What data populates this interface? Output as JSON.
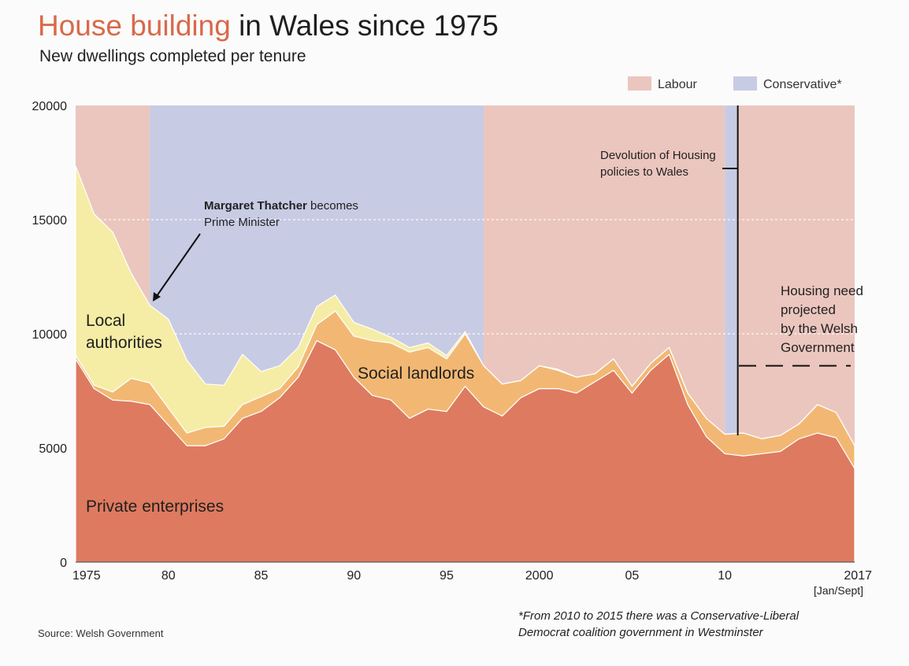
{
  "title": {
    "highlight": "House building",
    "rest": " in Wales since 1975"
  },
  "subtitle": "New dwellings completed per tenure",
  "source": "Source: Welsh Government",
  "footnote": "*From 2010 to 2015 there was a Conservative-Liberal Democrat coalition government in Westminster",
  "colors": {
    "labour_band": "#ebc6be",
    "conservative_band": "#c8cbe4",
    "private": "#de7a5f",
    "social": "#f2b873",
    "local": "#f5eda6",
    "title_accent": "#d9694a"
  },
  "legend": [
    {
      "label": "Labour",
      "color": "#ebc6be"
    },
    {
      "label": "Conservative*",
      "color": "#c8cbe4"
    }
  ],
  "annotations": {
    "thatcher_bold": "Margaret Thatcher",
    "thatcher_rest": " becomes",
    "thatcher_line2": "Prime Minister",
    "devolution_line1": "Devolution of Housing",
    "devolution_line2": "policies to Wales",
    "housing_need": [
      "Housing need",
      "projected",
      "by the Welsh",
      "Government"
    ],
    "jan_sept": "[Jan/Sept]"
  },
  "chart_data": {
    "type": "area",
    "stacked": true,
    "title": "House building in Wales since 1975",
    "subtitle": "New dwellings completed per tenure",
    "xlim": [
      1975,
      2017
    ],
    "ylim": [
      0,
      20000
    ],
    "y_ticks": [
      0,
      5000,
      10000,
      15000,
      20000
    ],
    "y_tick_labels": [
      "0",
      "5000",
      "10000",
      "15000",
      "20000"
    ],
    "x_ticks": [
      1975,
      1980,
      1985,
      1990,
      1995,
      2000,
      2005,
      2010,
      2017
    ],
    "x_tick_labels": [
      "1975",
      "80",
      "85",
      "90",
      "95",
      "2000",
      "05",
      "10",
      "2017"
    ],
    "grid": "horizontal dashed at 10000 and 15000",
    "legend_position": "top-right",
    "x": [
      1975,
      1976,
      1977,
      1978,
      1979,
      1980,
      1981,
      1982,
      1983,
      1984,
      1985,
      1986,
      1987,
      1988,
      1989,
      1990,
      1991,
      1992,
      1993,
      1994,
      1995,
      1996,
      1997,
      1998,
      1999,
      2000,
      2001,
      2002,
      2003,
      2004,
      2005,
      2006,
      2007,
      2008,
      2009,
      2010,
      2011,
      2012,
      2013,
      2014,
      2015,
      2016,
      2017
    ],
    "series": [
      {
        "name": "Private enterprises",
        "values": [
          8900,
          7600,
          7100,
          7050,
          6900,
          6000,
          5100,
          5100,
          5400,
          6300,
          6600,
          7200,
          8100,
          9700,
          9300,
          8100,
          7300,
          7100,
          6300,
          6700,
          6600,
          7700,
          6800,
          6400,
          7200,
          7600,
          7600,
          7400,
          7900,
          8400,
          7400,
          8400,
          9100,
          6900,
          5500,
          4750,
          4650,
          4750,
          4850,
          5400,
          5650,
          5450,
          4100
        ]
      },
      {
        "name": "Social landlords",
        "values": [
          150,
          150,
          350,
          1000,
          950,
          750,
          550,
          800,
          550,
          600,
          650,
          400,
          450,
          700,
          1700,
          1800,
          2400,
          2500,
          2900,
          2700,
          2300,
          2300,
          1800,
          1400,
          750,
          1000,
          800,
          700,
          350,
          500,
          300,
          300,
          300,
          500,
          800,
          850,
          1000,
          650,
          700,
          650,
          1250,
          1100,
          1000
        ]
      },
      {
        "name": "Local authorities",
        "values": [
          8300,
          7500,
          7000,
          4600,
          3400,
          3900,
          3200,
          1900,
          1800,
          2200,
          1100,
          1000,
          850,
          800,
          700,
          600,
          500,
          250,
          200,
          200,
          150,
          100,
          0,
          0,
          0,
          0,
          50,
          0,
          0,
          0,
          0,
          0,
          0,
          0,
          0,
          0,
          0,
          0,
          0,
          0,
          0,
          0,
          0
        ]
      }
    ],
    "governments": [
      {
        "party": "Labour",
        "from": 1975,
        "to": 1979
      },
      {
        "party": "Conservative",
        "from": 1979,
        "to": 1997
      },
      {
        "party": "Labour",
        "from": 1997,
        "to": 2010
      },
      {
        "party": "Conservative",
        "from": 2010,
        "to": 2010.7
      },
      {
        "party": "Labour",
        "from": 2010.7,
        "to": 2017
      }
    ],
    "devolution_year": 2010.7,
    "housing_need_projection": 8600,
    "x_label_note": "[Jan/Sept]"
  }
}
